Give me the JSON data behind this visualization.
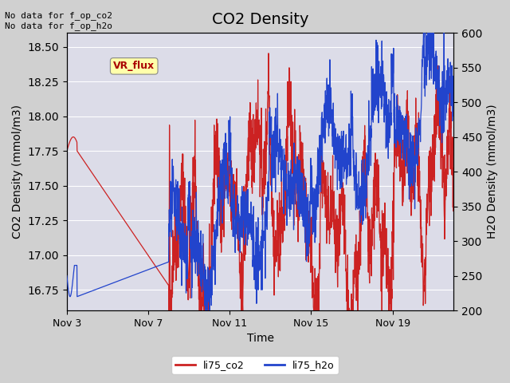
{
  "title": "CO2 Density",
  "xlabel": "Time",
  "ylabel_left": "CO2 Density (mmol/m3)",
  "ylabel_right": "H2O Density (mmol/m3)",
  "ylim_left": [
    16.6,
    18.6
  ],
  "ylim_right": [
    200,
    600
  ],
  "text_top_left": "No data for f_op_co2\nNo data for f_op_h2o",
  "vr_flux_label": "VR_flux",
  "xtick_labels": [
    "Nov 3",
    "Nov 7",
    "Nov 11",
    "Nov 15",
    "Nov 19"
  ],
  "xtick_positions": [
    0,
    4,
    8,
    12,
    16
  ],
  "legend_labels": [
    "li75_co2",
    "li75_h2o"
  ],
  "co2_color": "#cc2222",
  "h2o_color": "#2244cc",
  "plot_bg_color": "#dcdce8",
  "vr_flux_bg": "#ffffaa",
  "vr_flux_text_color": "#aa0000",
  "grid_color": "#ffffff",
  "title_fontsize": 14,
  "axis_label_fontsize": 10,
  "tick_fontsize": 9
}
